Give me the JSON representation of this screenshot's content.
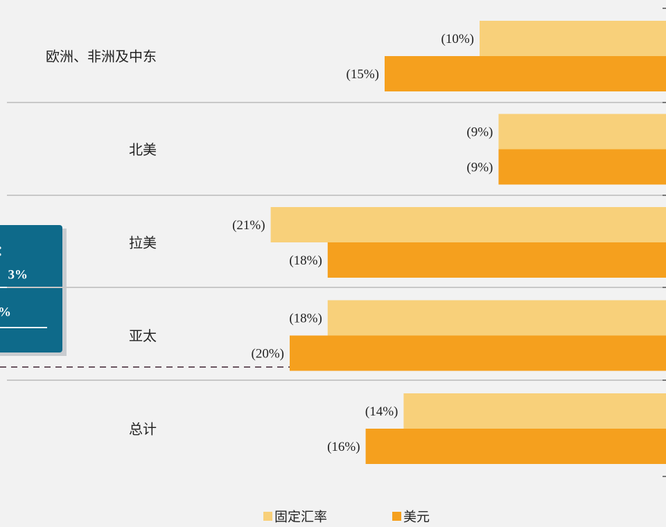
{
  "chart_data": {
    "type": "hbar",
    "categories": [
      "欧洲、非洲及中东",
      "北美",
      "拉美",
      "亚太",
      "总计"
    ],
    "series": [
      {
        "name": "固定汇率",
        "color": "#f8d07a",
        "values": [
          -10,
          -9,
          -21,
          -18,
          -14
        ],
        "value_labels": [
          "(10%)",
          "(9%)",
          "(21%)",
          "(18%)",
          "(14%)"
        ]
      },
      {
        "name": "美元",
        "color": "#f5a01e",
        "values": [
          -15,
          -9,
          -18,
          -20,
          -16
        ],
        "value_labels": [
          "(15%)",
          "(9%)",
          "(18%)",
          "(20%)",
          "(16%)"
        ]
      }
    ],
    "xlim": [
      -35,
      0
    ],
    "annotations": [
      "图：",
      "3%",
      "%"
    ]
  }
}
